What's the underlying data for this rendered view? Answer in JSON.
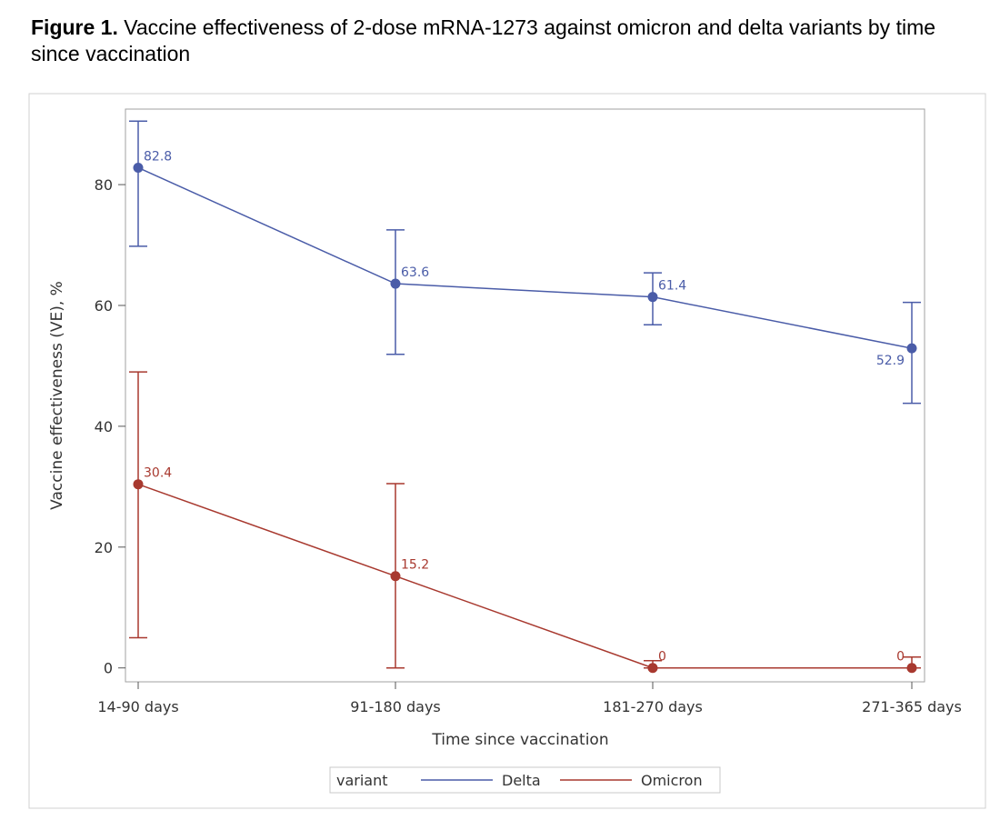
{
  "caption": {
    "label": "Figure 1.",
    "text": " Vaccine effectiveness of 2-dose mRNA-1273 against omicron and delta variants by time since vaccination"
  },
  "chart_data": {
    "type": "line",
    "title": "",
    "xlabel": "Time since vaccination",
    "ylabel": "Vaccine effectiveness (VE), %",
    "categories": [
      "14-90 days",
      "91-180 days",
      "181-270 days",
      "271-365 days"
    ],
    "ylim": [
      -2.3,
      92.5
    ],
    "yticks": [
      0,
      20,
      40,
      60,
      80
    ],
    "grid": false,
    "legend": {
      "title": "variant",
      "placement": "bottom"
    },
    "series": [
      {
        "name": "Delta",
        "color": "#4a5ca8",
        "values": [
          82.8,
          63.6,
          61.4,
          52.9
        ],
        "lower": [
          69.8,
          51.9,
          56.8,
          43.8
        ],
        "upper": [
          90.5,
          72.5,
          65.4,
          60.5
        ],
        "labels": [
          "82.8",
          "63.6",
          "61.4",
          "52.9"
        ]
      },
      {
        "name": "Omicron",
        "color": "#a8392f",
        "values": [
          30.4,
          15.2,
          0,
          0
        ],
        "lower": [
          5.0,
          0,
          0,
          0
        ],
        "upper": [
          49.0,
          30.5,
          1.2,
          1.8
        ],
        "labels": [
          "30.4",
          "15.2",
          "0",
          "0"
        ]
      }
    ]
  }
}
